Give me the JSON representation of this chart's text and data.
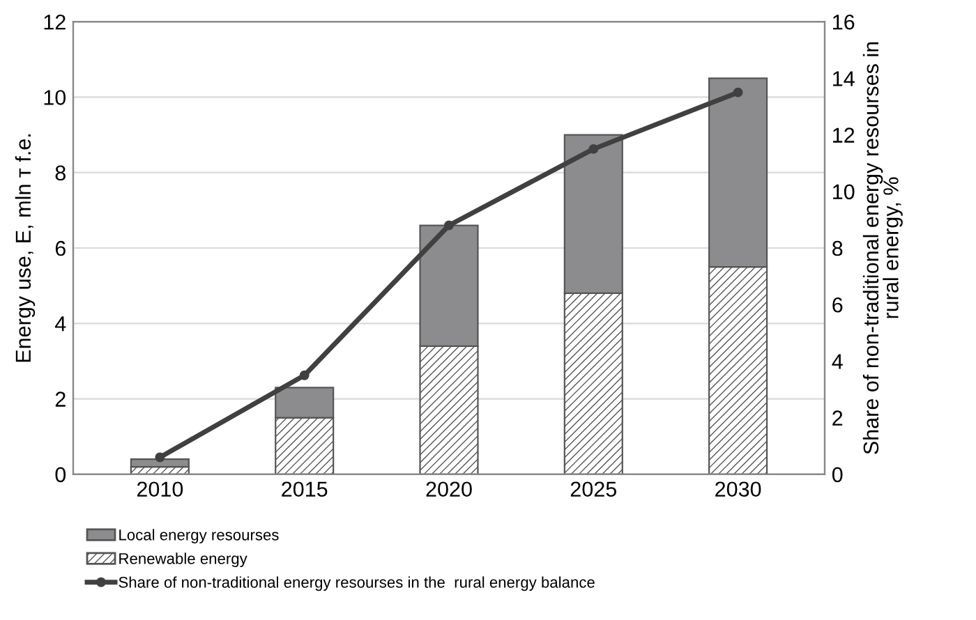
{
  "chart_data": {
    "type": "bar",
    "stacked": true,
    "categories": [
      "2010",
      "2015",
      "2020",
      "2025",
      "2030"
    ],
    "ylabel": "Energy use, E, mln т f.e.",
    "y2label": "Share of non-traditional energy resourses in\nrural energy, %",
    "series": [
      {
        "name": "Renewable energy",
        "color": "#555555",
        "values": [
          0.2,
          1.5,
          3.4,
          4.8,
          5.5
        ]
      },
      {
        "name": "Local energy resourses",
        "color": "#8c8c8e",
        "values": [
          0.2,
          0.8,
          3.2,
          4.2,
          5.0
        ]
      },
      {
        "name": "Share of non-traditional energy resourses in the  rural energy balance",
        "type": "line",
        "axis": "y2",
        "color": "#404040",
        "marker": "circle",
        "values": [
          0.6,
          3.5,
          8.8,
          11.5,
          13.5
        ]
      }
    ],
    "ylim": [
      0,
      12
    ],
    "yticks": [
      0,
      2,
      4,
      6,
      8,
      10,
      12
    ],
    "y2lim": [
      0,
      16
    ],
    "y2ticks": [
      0,
      2,
      4,
      6,
      8,
      10,
      12,
      14,
      16
    ],
    "grid": "y",
    "legend": "bottom"
  }
}
